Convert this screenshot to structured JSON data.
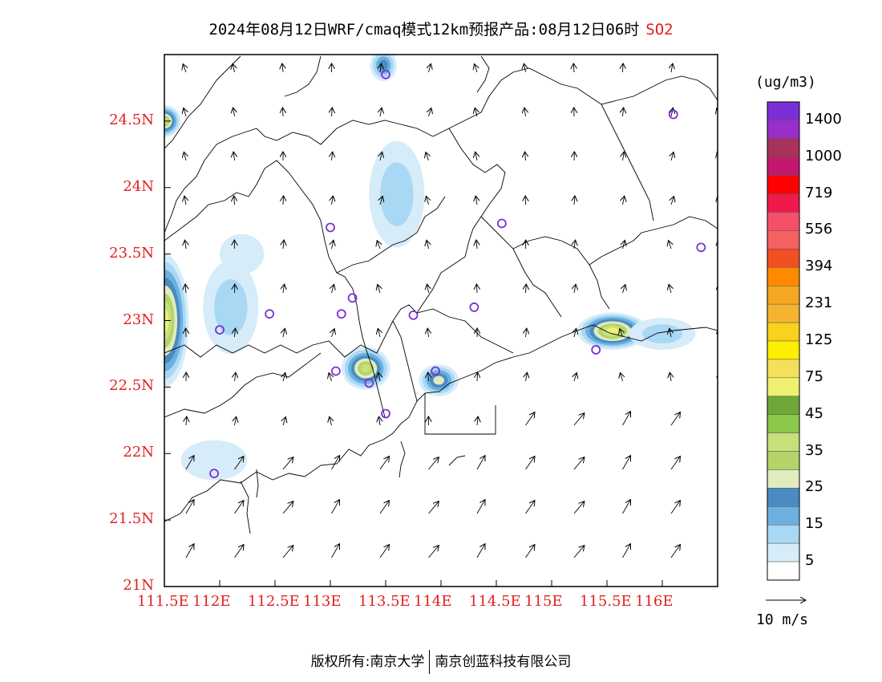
{
  "title": {
    "main": "2024年08月12日WRF/cmaq模式12km预报产品:08月12日06时",
    "species": "SO2"
  },
  "axes": {
    "lat_labels": [
      "21N",
      "21.5N",
      "22N",
      "22.5N",
      "23N",
      "23.5N",
      "24N",
      "24.5N"
    ],
    "lon_labels": [
      "111.5E",
      "112E",
      "112.5E",
      "113E",
      "113.5E",
      "114E",
      "114.5E",
      "115E",
      "115.5E",
      "116E"
    ],
    "lon_range": [
      111.5,
      116.5
    ],
    "lat_range": [
      21.0,
      25.0
    ]
  },
  "colorbar": {
    "units": "(ug/m3)",
    "labels": [
      "1400",
      "1000",
      "719",
      "556",
      "394",
      "231",
      "125",
      "75",
      "45",
      "35",
      "25",
      "15",
      "5"
    ],
    "colors_top_to_bottom": [
      "#7b2fd6",
      "#9a2ec8",
      "#a8325a",
      "#c4176e",
      "#ff0000",
      "#f01a4a",
      "#f5506a",
      "#f56060",
      "#f05022",
      "#ff8a00",
      "#f5a623",
      "#f5b430",
      "#f8d21c",
      "#ffee00",
      "#f5e05a",
      "#f0f070",
      "#6fa83a",
      "#8cc84a",
      "#c8e07a",
      "#b4d46a",
      "#e0ecc0",
      "#4a8cc2",
      "#6cb0e0",
      "#a8d8f4",
      "#d6ecf8",
      "#ffffff"
    ]
  },
  "wind_legend": {
    "label": "10 m/s"
  },
  "footer": {
    "copyright": "版权所有:南京大学",
    "company": "南京创蓝科技有限公司"
  },
  "map": {
    "stations": [
      {
        "lon": 113.5,
        "lat": 24.85
      },
      {
        "lon": 116.1,
        "lat": 24.55
      },
      {
        "lon": 114.55,
        "lat": 23.73
      },
      {
        "lon": 113.0,
        "lat": 23.7
      },
      {
        "lon": 116.35,
        "lat": 23.55
      },
      {
        "lon": 113.2,
        "lat": 23.17
      },
      {
        "lon": 112.45,
        "lat": 23.05
      },
      {
        "lon": 113.1,
        "lat": 23.05
      },
      {
        "lon": 113.75,
        "lat": 23.04
      },
      {
        "lon": 114.3,
        "lat": 23.1
      },
      {
        "lon": 112.0,
        "lat": 22.93
      },
      {
        "lon": 115.4,
        "lat": 22.78
      },
      {
        "lon": 113.05,
        "lat": 22.62
      },
      {
        "lon": 113.35,
        "lat": 22.53
      },
      {
        "lon": 113.95,
        "lat": 22.62
      },
      {
        "lon": 113.5,
        "lat": 22.3
      },
      {
        "lon": 111.95,
        "lat": 21.85
      }
    ],
    "plumes": [
      {
        "lon": 111.5,
        "lat": 23.0,
        "rx": 0.22,
        "ry": 0.5,
        "level": 40
      },
      {
        "lon": 111.5,
        "lat": 24.5,
        "rx": 0.15,
        "ry": 0.12,
        "level": 35
      },
      {
        "lon": 113.32,
        "lat": 22.64,
        "rx": 0.22,
        "ry": 0.16,
        "level": 35
      },
      {
        "lon": 115.55,
        "lat": 22.92,
        "rx": 0.32,
        "ry": 0.14,
        "level": 40
      },
      {
        "lon": 113.98,
        "lat": 22.55,
        "rx": 0.18,
        "ry": 0.12,
        "level": 25
      },
      {
        "lon": 113.48,
        "lat": 24.92,
        "rx": 0.12,
        "ry": 0.12,
        "level": 22
      },
      {
        "lon": 113.6,
        "lat": 23.95,
        "rx": 0.25,
        "ry": 0.4,
        "level": 12
      },
      {
        "lon": 112.1,
        "lat": 23.1,
        "rx": 0.25,
        "ry": 0.35,
        "level": 14
      },
      {
        "lon": 112.2,
        "lat": 23.5,
        "rx": 0.2,
        "ry": 0.15,
        "level": 8
      },
      {
        "lon": 111.95,
        "lat": 21.95,
        "rx": 0.3,
        "ry": 0.15,
        "level": 9
      },
      {
        "lon": 116.0,
        "lat": 22.9,
        "rx": 0.3,
        "ry": 0.12,
        "level": 10
      }
    ]
  }
}
